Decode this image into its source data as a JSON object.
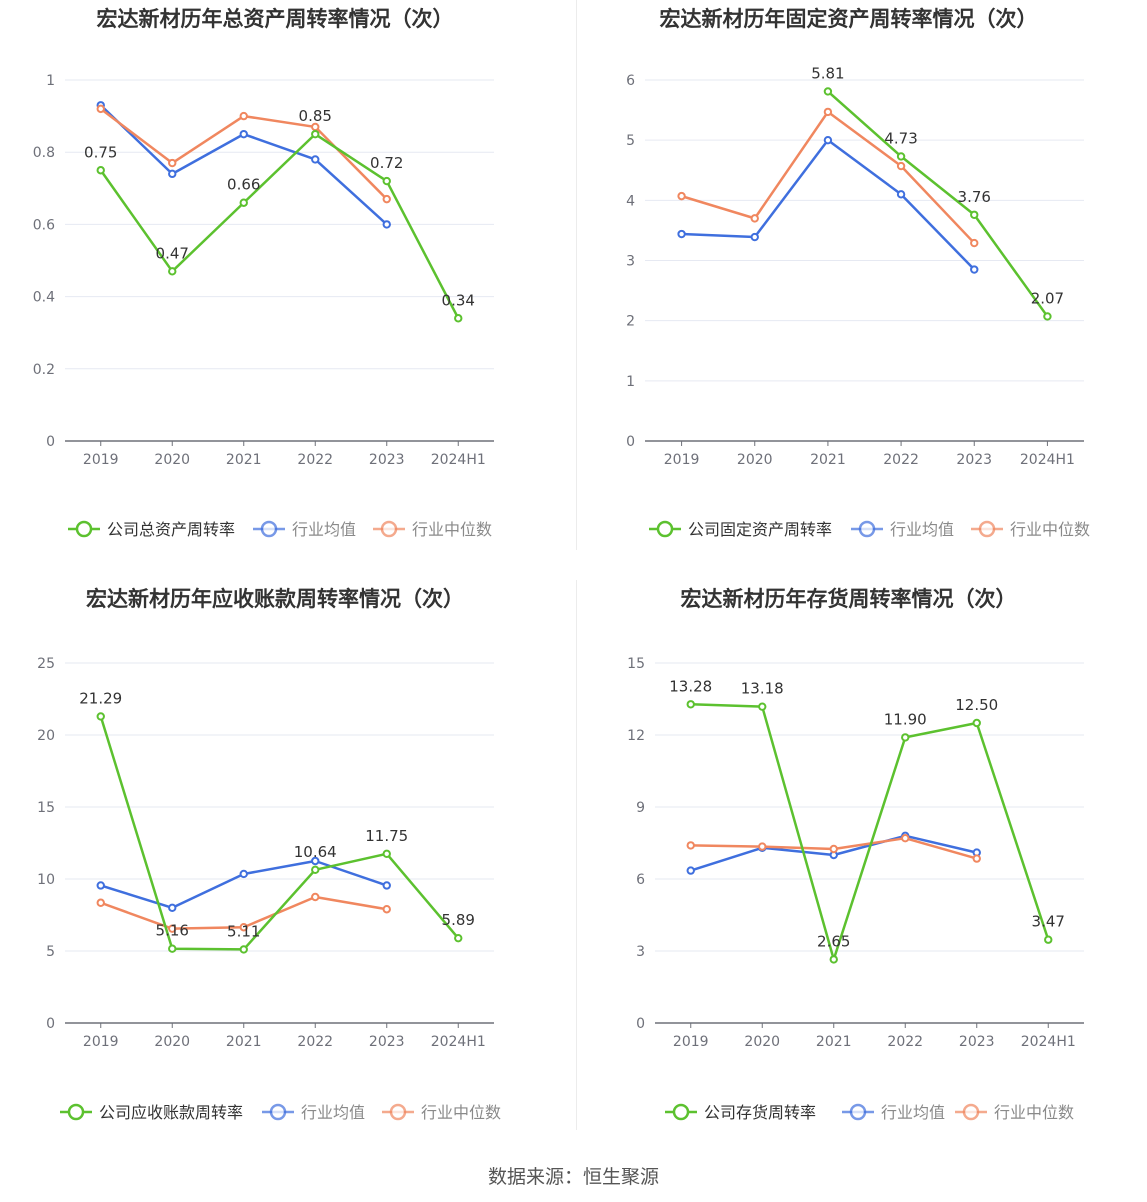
{
  "colors": {
    "company": "#5cc12f",
    "avg": "#3f6fde",
    "median": "#f0875f",
    "grid": "#e6e9f2",
    "axis": "#6e7079",
    "tick": "#6e7079",
    "title": "#333333"
  },
  "legend_labels": {
    "avg": "行业均值",
    "median": "行业中位数"
  },
  "source": "数据来源：恒生聚源",
  "chart_data": [
    {
      "type": "line",
      "title": "宏达新材历年总资产周转率情况（次）",
      "categories": [
        "2019",
        "2020",
        "2021",
        "2022",
        "2023",
        "2024H1"
      ],
      "ylim": [
        0,
        1
      ],
      "yticks": [
        0,
        0.2,
        0.4,
        0.6,
        0.8,
        1
      ],
      "ytick_labels": [
        "0",
        "0.2",
        "0.4",
        "0.6",
        "0.8",
        "1"
      ],
      "series": [
        {
          "key": "company",
          "name": "公司总资产周转率",
          "values": [
            0.75,
            0.47,
            0.66,
            0.85,
            0.72,
            0.34
          ],
          "labels": [
            "0.75",
            "0.47",
            "0.66",
            "0.85",
            "0.72",
            "0.34"
          ]
        },
        {
          "key": "avg",
          "name": "行业均值",
          "values": [
            0.93,
            0.74,
            0.85,
            0.78,
            0.6,
            null
          ]
        },
        {
          "key": "median",
          "name": "行业中位数",
          "values": [
            0.92,
            0.77,
            0.9,
            0.87,
            0.67,
            null
          ]
        }
      ]
    },
    {
      "type": "line",
      "title": "宏达新材历年固定资产周转率情况（次）",
      "categories": [
        "2019",
        "2020",
        "2021",
        "2022",
        "2023",
        "2024H1"
      ],
      "ylim": [
        0,
        6
      ],
      "yticks": [
        0,
        1,
        2,
        3,
        4,
        5,
        6
      ],
      "ytick_labels": [
        "0",
        "1",
        "2",
        "3",
        "4",
        "5",
        "6"
      ],
      "series": [
        {
          "key": "company",
          "name": "公司固定资产周转率",
          "values": [
            null,
            null,
            5.81,
            4.73,
            3.76,
            2.07
          ],
          "labels": [
            null,
            null,
            "5.81",
            "4.73",
            "3.76",
            "2.07"
          ]
        },
        {
          "key": "avg",
          "name": "行业均值",
          "values": [
            3.44,
            3.39,
            5.0,
            4.1,
            2.85,
            null
          ]
        },
        {
          "key": "median",
          "name": "行业中位数",
          "values": [
            4.07,
            3.7,
            5.47,
            4.57,
            3.29,
            null
          ]
        }
      ]
    },
    {
      "type": "line",
      "title": "宏达新材历年应收账款周转率情况（次）",
      "categories": [
        "2019",
        "2020",
        "2021",
        "2022",
        "2023",
        "2024H1"
      ],
      "ylim": [
        0,
        25
      ],
      "yticks": [
        0,
        5,
        10,
        15,
        20,
        25
      ],
      "ytick_labels": [
        "0",
        "5",
        "10",
        "15",
        "20",
        "25"
      ],
      "series": [
        {
          "key": "company",
          "name": "公司应收账款周转率",
          "values": [
            21.29,
            5.16,
            5.11,
            10.64,
            11.75,
            5.89
          ],
          "labels": [
            "21.29",
            "5.16",
            "5.11",
            "10.64",
            "11.75",
            "5.89"
          ]
        },
        {
          "key": "avg",
          "name": "行业均值",
          "values": [
            9.55,
            8.0,
            10.35,
            11.25,
            9.55,
            null
          ]
        },
        {
          "key": "median",
          "name": "行业中位数",
          "values": [
            8.35,
            6.55,
            6.65,
            8.75,
            7.9,
            null
          ]
        }
      ]
    },
    {
      "type": "line",
      "title": "宏达新材历年存货周转率情况（次）",
      "categories": [
        "2019",
        "2020",
        "2021",
        "2022",
        "2023",
        "2024H1"
      ],
      "ylim": [
        0,
        15
      ],
      "yticks": [
        0,
        3,
        6,
        9,
        12,
        15
      ],
      "ytick_labels": [
        "0",
        "3",
        "6",
        "9",
        "12",
        "15"
      ],
      "series": [
        {
          "key": "company",
          "name": "公司存货周转率",
          "values": [
            13.28,
            13.18,
            2.65,
            11.9,
            12.5,
            3.47
          ],
          "labels": [
            "13.28",
            "13.18",
            "2.65",
            "11.90",
            "12.50",
            "3.47"
          ]
        },
        {
          "key": "avg",
          "name": "行业均值",
          "values": [
            6.35,
            7.3,
            7.0,
            7.8,
            7.1,
            null
          ]
        },
        {
          "key": "median",
          "name": "行业中位数",
          "values": [
            7.4,
            7.35,
            7.25,
            7.7,
            6.85,
            null
          ]
        }
      ]
    }
  ]
}
